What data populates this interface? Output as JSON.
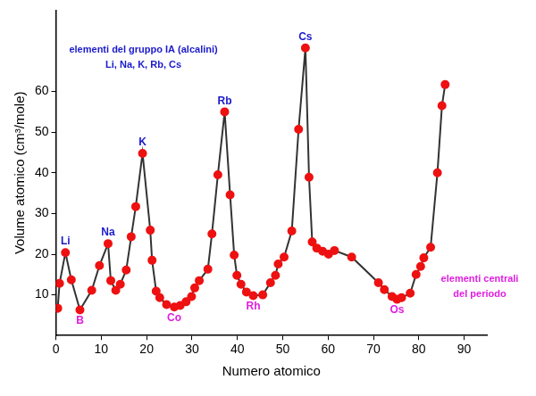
{
  "chart_data": {
    "type": "line",
    "x_label": "Numero atomico",
    "y_label": "Volume atomico (cm³/mole)",
    "x": [
      0.4,
      0.8,
      2.1,
      3.4,
      5.3,
      7.9,
      9.6,
      11.5,
      12.1,
      13.2,
      14.2,
      15.5,
      16.6,
      17.6,
      19.1,
      20.8,
      21.2,
      22.1,
      22.9,
      24.4,
      26.1,
      27.4,
      28.7,
      29.9,
      30.6,
      31.6,
      33.5,
      34.4,
      35.7,
      37.2,
      38.4,
      39.3,
      39.9,
      40.8,
      42.0,
      43.5,
      45.6,
      47.3,
      48.4,
      49.0,
      50.3,
      52.0,
      53.5,
      55.0,
      55.8,
      56.5,
      57.5,
      58.8,
      60.1,
      61.4,
      65.2,
      71.1,
      72.4,
      74.1,
      75.2,
      76.2,
      78.1,
      79.4,
      80.4,
      81.1,
      82.6,
      84.1,
      85.1,
      85.8
    ],
    "values": [
      6.7,
      12.8,
      20.4,
      13.7,
      6.3,
      11.1,
      17.2,
      22.6,
      13.5,
      11.1,
      12.6,
      16.1,
      24.3,
      31.7,
      44.8,
      25.9,
      18.5,
      10.9,
      9.3,
      7.6,
      7.0,
      7.4,
      8.3,
      9.6,
      11.7,
      13.5,
      16.3,
      25.0,
      39.5,
      55.0,
      34.6,
      19.8,
      14.8,
      12.6,
      10.7,
      9.8,
      10.0,
      13.0,
      14.8,
      17.6,
      19.3,
      25.7,
      50.7,
      70.7,
      38.9,
      23.0,
      21.5,
      20.7,
      20.0,
      20.9,
      19.3,
      13.0,
      11.3,
      9.6,
      8.9,
      9.3,
      10.4,
      15.0,
      17.0,
      19.1,
      21.7,
      40.0,
      56.5,
      61.7
    ],
    "color": "#333333",
    "marker": "circle",
    "grid": false,
    "xlim": [
      0,
      95
    ],
    "xticks": [
      0,
      10,
      20,
      30,
      40,
      50,
      60,
      70,
      80,
      90
    ],
    "ylim": [
      0,
      80
    ],
    "yticks": [
      10,
      20,
      30,
      40,
      50,
      60
    ],
    "point_labels": [
      {
        "text": "Li",
        "x": 2.1,
        "y": 20.4,
        "color": "#1a1acc",
        "position": "above"
      },
      {
        "text": "Na",
        "x": 11.5,
        "y": 22.6,
        "color": "#1a1acc",
        "position": "above"
      },
      {
        "text": "K",
        "x": 19.1,
        "y": 44.8,
        "color": "#1a1acc",
        "position": "above"
      },
      {
        "text": "Rb",
        "x": 37.2,
        "y": 55.0,
        "color": "#1a1acc",
        "position": "above"
      },
      {
        "text": "Cs",
        "x": 55.0,
        "y": 70.7,
        "color": "#1a1acc",
        "position": "above"
      },
      {
        "text": "B",
        "x": 5.3,
        "y": 6.3,
        "color": "#e01ee0",
        "position": "below"
      },
      {
        "text": "Co",
        "x": 26.1,
        "y": 7.0,
        "color": "#e01ee0",
        "position": "below"
      },
      {
        "text": "Rh",
        "x": 43.5,
        "y": 9.8,
        "color": "#e01ee0",
        "position": "below"
      },
      {
        "text": "Os",
        "x": 75.2,
        "y": 8.9,
        "color": "#e01ee0",
        "position": "below"
      }
    ],
    "annotations": [
      {
        "text": "elementi del gruppo IA (alcalini)",
        "color": "#1a1acc",
        "position": "top-left"
      },
      {
        "text": "Li, Na, K, Rb, Cs",
        "color": "#1a1acc",
        "position": "top-left"
      },
      {
        "text": "elementi centrali",
        "color": "#e01ee0",
        "position": "right"
      },
      {
        "text": "del periodo",
        "color": "#e01ee0",
        "position": "right"
      }
    ]
  }
}
